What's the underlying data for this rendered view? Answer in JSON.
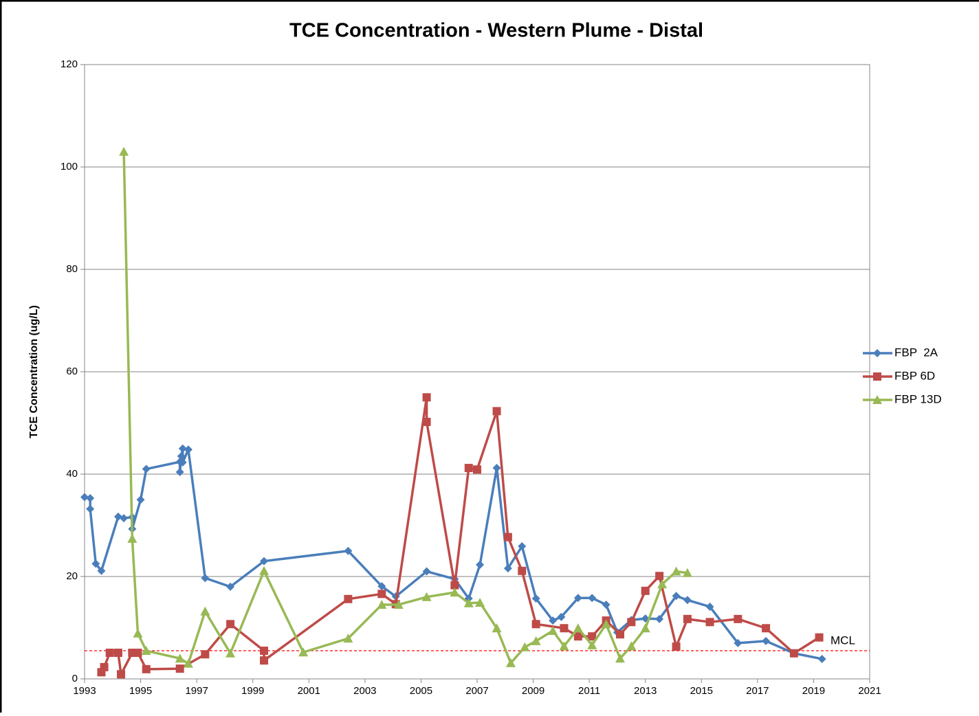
{
  "chart_data": {
    "type": "line",
    "title": "TCE Concentration - Western Plume - Distal",
    "y_label": "TCE Concentration (ug/L)",
    "xlim": [
      1993,
      2021
    ],
    "xticks": [
      1993,
      1995,
      1997,
      1999,
      2001,
      2003,
      2005,
      2007,
      2009,
      2011,
      2013,
      2015,
      2017,
      2019,
      2021
    ],
    "ylim": [
      0,
      120
    ],
    "yticks": [
      0,
      20,
      40,
      60,
      80,
      100,
      120
    ],
    "grid": true,
    "legend": "right",
    "reference_line": {
      "label": "MCL",
      "value": 5.5,
      "color": "#ff0000"
    },
    "series": [
      {
        "name": "FBP  2A",
        "color": "#4a7ebb",
        "marker": "diamond",
        "x": [
          1993.0,
          1993.2,
          1993.2,
          1993.4,
          1993.6,
          1994.2,
          1994.4,
          1994.7,
          1994.7,
          1995.0,
          1995.2,
          1996.4,
          1996.4,
          1996.45,
          1996.5,
          1996.5,
          1996.7,
          1997.3,
          1998.2,
          1999.4,
          2002.4,
          2003.6,
          2004.1,
          2005.2,
          2006.2,
          2006.7,
          2007.1,
          2007.7,
          2008.1,
          2008.6,
          2009.1,
          2009.7,
          2010.0,
          2010.6,
          2011.1,
          2011.6,
          2012.0,
          2012.5,
          2013.0,
          2013.5,
          2014.1,
          2014.5,
          2015.3,
          2016.3,
          2017.3,
          2018.3,
          2019.3
        ],
        "values": [
          35.5,
          35.3,
          33.2,
          22.5,
          21.1,
          31.7,
          31.4,
          31.6,
          29.3,
          35.0,
          41.0,
          42.4,
          40.4,
          43.5,
          45.0,
          42.3,
          44.8,
          19.7,
          18.0,
          23.0,
          25.0,
          18.1,
          16.1,
          21.0,
          19.5,
          15.7,
          22.3,
          41.2,
          21.6,
          25.9,
          15.7,
          11.4,
          12.1,
          15.8,
          15.8,
          14.5,
          9.1,
          11.5,
          11.8,
          11.7,
          16.2,
          15.4,
          14.1,
          7.0,
          7.4,
          5.0,
          3.9
        ]
      },
      {
        "name": "FBP 6D",
        "color": "#be4b48",
        "marker": "square",
        "x": [
          1993.6,
          1993.7,
          1993.9,
          1994.2,
          1994.3,
          1994.7,
          1994.9,
          1995.2,
          1996.4,
          1997.3,
          1998.2,
          1999.4,
          1999.4,
          2002.4,
          2003.6,
          2004.1,
          2005.2,
          2005.2,
          2006.2,
          2006.7,
          2007.0,
          2007.7,
          2008.1,
          2008.6,
          2009.1,
          2010.1,
          2010.6,
          2011.1,
          2011.6,
          2012.1,
          2012.5,
          2013.0,
          2013.5,
          2014.1,
          2014.5,
          2015.3,
          2016.3,
          2017.3,
          2018.3,
          2019.2
        ],
        "values": [
          1.3,
          2.3,
          5.1,
          5.1,
          0.9,
          5.1,
          5.1,
          1.9,
          2.0,
          4.8,
          10.7,
          5.5,
          3.6,
          15.6,
          16.6,
          14.6,
          55.0,
          50.2,
          18.3,
          41.2,
          40.9,
          52.3,
          27.7,
          21.1,
          10.7,
          9.9,
          8.3,
          8.3,
          11.4,
          8.7,
          11.1,
          17.2,
          20.1,
          6.3,
          11.7,
          11.1,
          11.7,
          9.9,
          5.0,
          8.1
        ]
      },
      {
        "name": "FBP 13D",
        "color": "#98b954",
        "marker": "triangle",
        "x": [
          1994.4,
          1994.7,
          1994.9,
          1995.2,
          1996.4,
          1996.7,
          1997.3,
          1998.2,
          1999.4,
          2000.8,
          2002.4,
          2003.6,
          2004.2,
          2005.2,
          2006.2,
          2006.7,
          2007.1,
          2007.7,
          2008.2,
          2008.7,
          2009.1,
          2009.7,
          2010.1,
          2010.6,
          2011.1,
          2011.6,
          2012.1,
          2012.5,
          2013.0,
          2013.6,
          2014.1,
          2014.5
        ],
        "values": [
          103.0,
          27.4,
          8.9,
          5.5,
          4.0,
          3.0,
          13.2,
          5.0,
          21.1,
          5.2,
          7.9,
          14.5,
          14.5,
          16.0,
          16.9,
          14.8,
          14.9,
          9.9,
          3.1,
          6.2,
          7.4,
          9.4,
          6.4,
          9.9,
          6.6,
          10.7,
          4.0,
          6.4,
          9.9,
          18.5,
          21.0,
          20.7
        ]
      }
    ]
  }
}
